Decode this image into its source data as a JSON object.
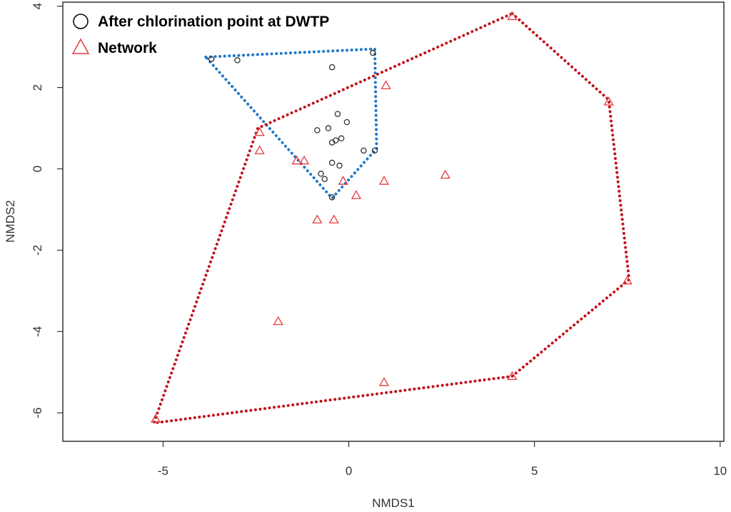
{
  "chart_data": {
    "type": "scatter",
    "title": "",
    "xlabel": "NMDS1",
    "ylabel": "NMDS2",
    "xlim": [
      -7.7,
      10.1
    ],
    "ylim": [
      -6.7,
      4.1
    ],
    "x_ticks": [
      "-5",
      "0",
      "5",
      "10"
    ],
    "y_ticks": [
      "-6",
      "-4",
      "-2",
      "0",
      "2",
      "4"
    ],
    "grid": false,
    "legend_position": "top-left",
    "series": [
      {
        "name": "After chlorination point at DWTP",
        "marker": "circle",
        "color": "#333333",
        "hull_color": "#1f78c8",
        "points": [
          [
            -3.7,
            2.7
          ],
          [
            -3.0,
            2.67
          ],
          [
            -0.45,
            2.5
          ],
          [
            0.65,
            2.85
          ],
          [
            -0.3,
            1.35
          ],
          [
            -0.05,
            1.15
          ],
          [
            -0.55,
            1.0
          ],
          [
            -0.85,
            0.95
          ],
          [
            -0.2,
            0.75
          ],
          [
            -0.35,
            0.7
          ],
          [
            -0.45,
            0.65
          ],
          [
            0.4,
            0.45
          ],
          [
            0.7,
            0.45
          ],
          [
            -0.45,
            0.15
          ],
          [
            -0.25,
            0.08
          ],
          [
            -0.75,
            -0.12
          ],
          [
            -0.65,
            -0.25
          ],
          [
            -0.45,
            -0.7
          ]
        ],
        "hull": [
          [
            -3.85,
            2.75
          ],
          [
            0.7,
            2.95
          ],
          [
            0.75,
            0.5
          ],
          [
            -0.45,
            -0.72
          ]
        ]
      },
      {
        "name": "Network",
        "marker": "triangle",
        "color": "#e8383d",
        "hull_color": "#c0141e",
        "points": [
          [
            4.4,
            3.75
          ],
          [
            7.0,
            1.65
          ],
          [
            1.0,
            2.05
          ],
          [
            -2.4,
            0.9
          ],
          [
            -2.4,
            0.45
          ],
          [
            -1.4,
            0.2
          ],
          [
            -1.2,
            0.2
          ],
          [
            2.6,
            -0.15
          ],
          [
            -0.15,
            -0.3
          ],
          [
            0.95,
            -0.3
          ],
          [
            0.2,
            -0.65
          ],
          [
            -0.85,
            -1.25
          ],
          [
            -0.4,
            -1.25
          ],
          [
            7.5,
            -2.75
          ],
          [
            -1.9,
            -3.75
          ],
          [
            0.95,
            -5.25
          ],
          [
            4.4,
            -5.1
          ],
          [
            -5.2,
            -6.15
          ]
        ],
        "hull": [
          [
            4.4,
            3.82
          ],
          [
            7.0,
            1.7
          ],
          [
            7.55,
            -2.72
          ],
          [
            4.4,
            -5.1
          ],
          [
            -5.25,
            -6.25
          ],
          [
            -2.45,
            1.0
          ]
        ]
      }
    ]
  }
}
